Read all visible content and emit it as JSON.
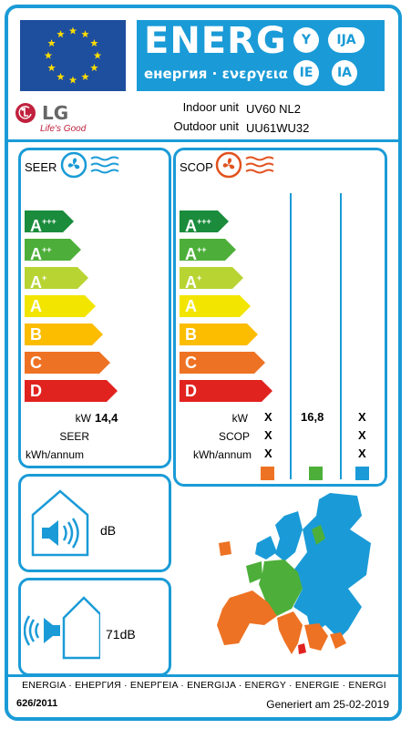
{
  "header": {
    "energy_word": "ENERG",
    "energy_subtitle": "енергия · ενεργεια",
    "languages": [
      "Y",
      "IJA",
      "IE",
      "IA"
    ]
  },
  "brand": {
    "logo_text": "LG",
    "tagline": "Life's Good",
    "indoor_label": "Indoor unit",
    "indoor_value": "UV60 NL2",
    "outdoor_label": "Outdoor unit",
    "outdoor_value": "UU61WU32"
  },
  "classes": [
    {
      "letter": "A",
      "sup": "+++",
      "color": "#1a8c3c"
    },
    {
      "letter": "A",
      "sup": "++",
      "color": "#4daf3a"
    },
    {
      "letter": "A",
      "sup": "+",
      "color": "#b8d433"
    },
    {
      "letter": "A",
      "sup": "",
      "color": "#f2e500"
    },
    {
      "letter": "B",
      "sup": "",
      "color": "#fcbc00"
    },
    {
      "letter": "C",
      "sup": "",
      "color": "#ee7223"
    },
    {
      "letter": "D",
      "sup": "",
      "color": "#e1231f"
    }
  ],
  "seer": {
    "title": "SEER",
    "kw_label": "kW",
    "kw_value": "14,4",
    "seer_label": "SEER",
    "kwh_label": "kWh/annum"
  },
  "scop": {
    "title": "SCOP",
    "kw_label": "kW",
    "scop_label": "SCOP",
    "kwh_label": "kWh/annum",
    "zones": [
      {
        "kw": "X",
        "scop": "X",
        "kwh": "X",
        "color": "#ee7223"
      },
      {
        "kw": "16,8",
        "scop": "",
        "kwh": "",
        "color": "#4daf3a"
      },
      {
        "kw": "X",
        "scop": "X",
        "kwh": "X",
        "color": "#1a9bd7"
      }
    ]
  },
  "noise": {
    "indoor_value": "dB",
    "outdoor_value": "71dB"
  },
  "footer": {
    "languages": "ENERGIA · ЕНЕРГИЯ · ΕΝΕΡΓΕΙΑ · ENERGIJA · ENERGY · ENERGIE · ENERGI",
    "regulation": "626/2011",
    "generated": "Generiert am 25-02-2019"
  },
  "colors": {
    "frame": "#1a9bd7",
    "eu_blue": "#1e4e9e",
    "eu_star": "#ffdd00",
    "lg_red": "#c0213d"
  }
}
